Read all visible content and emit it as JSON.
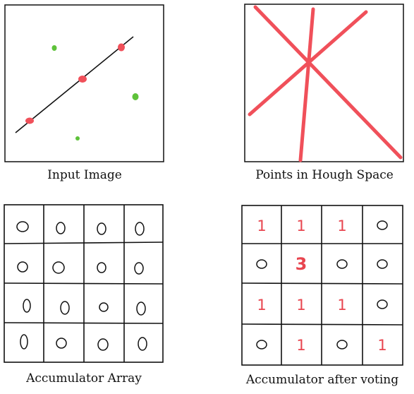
{
  "captions": {
    "input_image": "Input Image",
    "hough_space": "Points in Hough Space",
    "accumulator": "Accumulator Array",
    "accumulator_voted": "Accumulator after voting"
  },
  "colors": {
    "point_on_line": "#f0505a",
    "noise_point": "#5ec23a",
    "hough_line": "#f0505a",
    "vote_text": "#e8454f",
    "ink": "#111111"
  },
  "accumulator_voted": [
    [
      "1",
      "1",
      "1",
      "0"
    ],
    [
      "0",
      "3",
      "0",
      "0"
    ],
    [
      "1",
      "1",
      "1",
      "0"
    ],
    [
      "0",
      "1",
      "0",
      "1"
    ]
  ]
}
